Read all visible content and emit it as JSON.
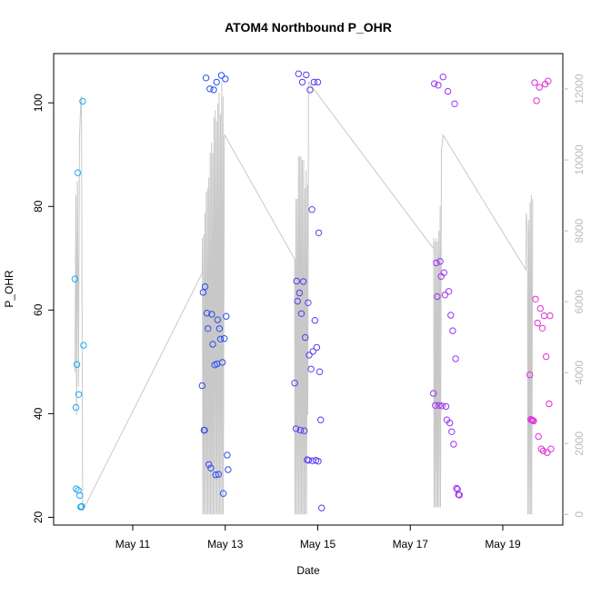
{
  "chart_data": {
    "type": "scatter",
    "title": "ATOM4 Northbound P_OHR",
    "xlabel": "Date",
    "ylabel": "P_OHR",
    "x_domain": [
      "2022-05-09",
      "2022-05-20"
    ],
    "x_ticks": [
      {
        "date": "2022-05-11",
        "label": "May 11"
      },
      {
        "date": "2022-05-13",
        "label": "May 13"
      },
      {
        "date": "2022-05-15",
        "label": "May 15"
      },
      {
        "date": "2022-05-17",
        "label": "May 17"
      },
      {
        "date": "2022-05-19",
        "label": "May 19"
      }
    ],
    "ylim": [
      18.5,
      109.5
    ],
    "y_ticks": [
      20,
      40,
      60,
      80,
      100
    ],
    "y2lim": [
      -300,
      13000
    ],
    "y2_ticks": [
      0,
      2000,
      4000,
      6000,
      8000,
      10000,
      12000
    ],
    "grid": false,
    "legend": "none",
    "point_colors": [
      "#1fa9f5",
      "#2b4ef0",
      "#5b3cf0",
      "#9c33f0",
      "#e030d8"
    ],
    "line_color": "#c8c8c8",
    "axis_color": "#000000",
    "secondary_axis_color": "#bbbbbb",
    "point_series": [
      {
        "day": "May 9",
        "points": [
          [
            "2022-05-09T18:00",
            66.0
          ],
          [
            "2022-05-09T18:30",
            41.2
          ],
          [
            "2022-05-09T19:00",
            49.5
          ],
          [
            "2022-05-09T19:30",
            86.5
          ],
          [
            "2022-05-09T19:45",
            25.2
          ],
          [
            "2022-05-09T20:00",
            43.7
          ],
          [
            "2022-05-09T20:30",
            24.2
          ],
          [
            "2022-05-09T21:00",
            22.0
          ],
          [
            "2022-05-09T21:30",
            22.1
          ],
          [
            "2022-05-09T22:00",
            100.3
          ],
          [
            "2022-05-09T22:30",
            53.2
          ],
          [
            "2022-05-09T18:40",
            25.5
          ],
          [
            "2022-05-09T21:15",
            22.0
          ]
        ]
      },
      {
        "day": "May 12-13",
        "points": [
          [
            "2022-05-12T12:00",
            45.4
          ],
          [
            "2022-05-12T12:30",
            63.4
          ],
          [
            "2022-05-12T13:00",
            36.8
          ],
          [
            "2022-05-12T13:30",
            64.5
          ],
          [
            "2022-05-12T14:00",
            104.8
          ],
          [
            "2022-05-12T14:30",
            59.4
          ],
          [
            "2022-05-12T15:00",
            56.4
          ],
          [
            "2022-05-12T15:30",
            30.2
          ],
          [
            "2022-05-12T16:00",
            102.7
          ],
          [
            "2022-05-12T16:30",
            29.5
          ],
          [
            "2022-05-12T17:00",
            59.2
          ],
          [
            "2022-05-12T17:30",
            53.4
          ],
          [
            "2022-05-12T18:00",
            102.5
          ],
          [
            "2022-05-12T18:30",
            49.4
          ],
          [
            "2022-05-12T19:00",
            28.2
          ],
          [
            "2022-05-12T19:30",
            104.0
          ],
          [
            "2022-05-12T20:00",
            58.1
          ],
          [
            "2022-05-12T20:30",
            28.3
          ],
          [
            "2022-05-12T21:00",
            56.4
          ],
          [
            "2022-05-12T21:30",
            54.4
          ],
          [
            "2022-05-12T22:00",
            105.3
          ],
          [
            "2022-05-12T22:30",
            49.9
          ],
          [
            "2022-05-12T23:00",
            24.6
          ],
          [
            "2022-05-12T23:30",
            54.5
          ],
          [
            "2022-05-13T00:00",
            104.6
          ],
          [
            "2022-05-13T00:30",
            58.8
          ],
          [
            "2022-05-13T01:00",
            32.0
          ],
          [
            "2022-05-13T01:30",
            29.2
          ],
          [
            "2022-05-12T13:15",
            36.8
          ],
          [
            "2022-05-12T19:45",
            49.6
          ]
        ]
      },
      {
        "day": "May 14-15",
        "points": [
          [
            "2022-05-14T12:00",
            45.9
          ],
          [
            "2022-05-14T12:40",
            37.1
          ],
          [
            "2022-05-14T13:00",
            65.6
          ],
          [
            "2022-05-14T13:30",
            61.7
          ],
          [
            "2022-05-14T14:00",
            105.6
          ],
          [
            "2022-05-14T14:30",
            63.3
          ],
          [
            "2022-05-14T15:00",
            36.8
          ],
          [
            "2022-05-14T15:30",
            59.3
          ],
          [
            "2022-05-14T16:00",
            104.0
          ],
          [
            "2022-05-14T16:30",
            65.5
          ],
          [
            "2022-05-14T17:00",
            36.7
          ],
          [
            "2022-05-14T17:30",
            54.7
          ],
          [
            "2022-05-14T18:00",
            105.4
          ],
          [
            "2022-05-14T18:30",
            31.1
          ],
          [
            "2022-05-14T19:00",
            61.4
          ],
          [
            "2022-05-14T19:30",
            51.3
          ],
          [
            "2022-05-14T20:00",
            102.5
          ],
          [
            "2022-05-14T20:30",
            48.6
          ],
          [
            "2022-05-14T21:00",
            79.4
          ],
          [
            "2022-05-14T21:30",
            52.0
          ],
          [
            "2022-05-14T22:00",
            104.0
          ],
          [
            "2022-05-14T22:30",
            58.0
          ],
          [
            "2022-05-14T23:00",
            31.0
          ],
          [
            "2022-05-14T23:30",
            52.8
          ],
          [
            "2022-05-15T00:00",
            104.0
          ],
          [
            "2022-05-15T00:30",
            74.9
          ],
          [
            "2022-05-15T01:00",
            48.1
          ],
          [
            "2022-05-15T01:30",
            38.8
          ],
          [
            "2022-05-15T02:00",
            21.8
          ],
          [
            "2022-05-14T19:15",
            31.0
          ],
          [
            "2022-05-14T21:15",
            30.9
          ],
          [
            "2022-05-15T00:15",
            30.8
          ]
        ]
      },
      {
        "day": "May 17",
        "points": [
          [
            "2022-05-17T12:00",
            43.9
          ],
          [
            "2022-05-17T12:30",
            103.7
          ],
          [
            "2022-05-17T13:00",
            41.6
          ],
          [
            "2022-05-17T13:30",
            69.1
          ],
          [
            "2022-05-17T14:00",
            62.6
          ],
          [
            "2022-05-17T14:30",
            103.4
          ],
          [
            "2022-05-17T15:00",
            41.6
          ],
          [
            "2022-05-17T15:30",
            69.4
          ],
          [
            "2022-05-17T16:00",
            66.5
          ],
          [
            "2022-05-17T16:30",
            41.5
          ],
          [
            "2022-05-17T17:00",
            105.0
          ],
          [
            "2022-05-17T17:30",
            67.2
          ],
          [
            "2022-05-17T18:00",
            62.9
          ],
          [
            "2022-05-17T18:30",
            41.4
          ],
          [
            "2022-05-17T19:00",
            38.8
          ],
          [
            "2022-05-17T19:30",
            102.2
          ],
          [
            "2022-05-17T20:00",
            63.6
          ],
          [
            "2022-05-17T20:30",
            38.2
          ],
          [
            "2022-05-17T21:00",
            59.0
          ],
          [
            "2022-05-17T21:30",
            36.5
          ],
          [
            "2022-05-17T22:00",
            56.0
          ],
          [
            "2022-05-17T22:30",
            34.1
          ],
          [
            "2022-05-17T23:00",
            99.8
          ],
          [
            "2022-05-17T23:30",
            50.6
          ],
          [
            "2022-05-18T00:00",
            25.6
          ],
          [
            "2022-05-18T00:30",
            25.4
          ],
          [
            "2022-05-18T01:00",
            24.4
          ],
          [
            "2022-05-18T01:30",
            24.3
          ]
        ]
      },
      {
        "day": "May 19",
        "points": [
          [
            "2022-05-19T14:00",
            47.5
          ],
          [
            "2022-05-19T14:30",
            38.9
          ],
          [
            "2022-05-19T15:00",
            38.8
          ],
          [
            "2022-05-19T15:30",
            38.7
          ],
          [
            "2022-05-19T16:00",
            38.6
          ],
          [
            "2022-05-19T16:30",
            103.9
          ],
          [
            "2022-05-19T17:00",
            62.1
          ],
          [
            "2022-05-19T17:30",
            100.4
          ],
          [
            "2022-05-19T18:00",
            57.5
          ],
          [
            "2022-05-19T18:30",
            35.6
          ],
          [
            "2022-05-19T19:00",
            103.0
          ],
          [
            "2022-05-19T19:30",
            60.3
          ],
          [
            "2022-05-19T20:00",
            33.2
          ],
          [
            "2022-05-19T20:30",
            56.5
          ],
          [
            "2022-05-19T21:00",
            32.8
          ],
          [
            "2022-05-19T21:30",
            58.9
          ],
          [
            "2022-05-19T22:00",
            103.6
          ],
          [
            "2022-05-19T22:30",
            51.0
          ],
          [
            "2022-05-19T23:00",
            32.5
          ],
          [
            "2022-05-19T23:30",
            104.2
          ],
          [
            "2022-05-20T00:00",
            41.9
          ],
          [
            "2022-05-20T00:30",
            58.9
          ],
          [
            "2022-05-20T01:00",
            33.2
          ]
        ]
      }
    ],
    "line_series": [
      [
        "2022-05-09T18:00",
        4000
      ],
      [
        "2022-05-09T18:30",
        9000
      ],
      [
        "2022-05-09T18:50",
        2800
      ],
      [
        "2022-05-09T19:20",
        9400
      ],
      [
        "2022-05-09T19:50",
        3600
      ],
      [
        "2022-05-09T20:20",
        10600
      ],
      [
        "2022-05-09T20:50",
        11300
      ],
      [
        "2022-05-09T21:10",
        11700
      ],
      [
        "2022-05-09T21:25",
        11800
      ],
      [
        "2022-05-09T22:00",
        100
      ],
      [
        "2022-05-12T12:00",
        6800
      ],
      [
        "2022-05-12T12:10",
        7800
      ],
      [
        "2022-05-12T12:20",
        0
      ],
      [
        "2022-05-12T12:50",
        7900
      ],
      [
        "2022-05-12T13:00",
        0
      ],
      [
        "2022-05-12T13:30",
        8500
      ],
      [
        "2022-05-12T13:40",
        0
      ],
      [
        "2022-05-12T14:10",
        9100
      ],
      [
        "2022-05-12T14:20",
        0
      ],
      [
        "2022-05-12T14:50",
        9200
      ],
      [
        "2022-05-12T15:00",
        0
      ],
      [
        "2022-05-12T15:30",
        9500
      ],
      [
        "2022-05-12T15:40",
        0
      ],
      [
        "2022-05-12T16:10",
        10200
      ],
      [
        "2022-05-12T16:20",
        0
      ],
      [
        "2022-05-12T16:50",
        10500
      ],
      [
        "2022-05-12T17:00",
        0
      ],
      [
        "2022-05-12T17:30",
        10200
      ],
      [
        "2022-05-12T17:40",
        0
      ],
      [
        "2022-05-12T18:10",
        11200
      ],
      [
        "2022-05-12T18:20",
        0
      ],
      [
        "2022-05-12T18:50",
        11400
      ],
      [
        "2022-05-12T19:00",
        0
      ],
      [
        "2022-05-12T19:30",
        11100
      ],
      [
        "2022-05-12T19:40",
        0
      ],
      [
        "2022-05-12T20:10",
        11600
      ],
      [
        "2022-05-12T20:20",
        0
      ],
      [
        "2022-05-12T20:50",
        11900
      ],
      [
        "2022-05-12T21:00",
        0
      ],
      [
        "2022-05-12T21:30",
        11300
      ],
      [
        "2022-05-12T21:40",
        0
      ],
      [
        "2022-05-12T22:10",
        12200
      ],
      [
        "2022-05-12T22:20",
        0
      ],
      [
        "2022-05-12T22:50",
        11800
      ],
      [
        "2022-05-12T23:00",
        0
      ],
      [
        "2022-05-12T23:30",
        10700
      ],
      [
        "2022-05-12T23:45",
        10700
      ],
      [
        "2022-05-14T12:00",
        7200
      ],
      [
        "2022-05-14T12:10",
        0
      ],
      [
        "2022-05-14T12:40",
        8900
      ],
      [
        "2022-05-14T12:50",
        0
      ],
      [
        "2022-05-14T13:20",
        8900
      ],
      [
        "2022-05-14T13:30",
        0
      ],
      [
        "2022-05-14T14:00",
        10100
      ],
      [
        "2022-05-14T14:10",
        0
      ],
      [
        "2022-05-14T14:40",
        10100
      ],
      [
        "2022-05-14T14:50",
        0
      ],
      [
        "2022-05-14T15:20",
        10100
      ],
      [
        "2022-05-14T15:30",
        0
      ],
      [
        "2022-05-14T16:00",
        10000
      ],
      [
        "2022-05-14T16:10",
        0
      ],
      [
        "2022-05-14T16:40",
        10000
      ],
      [
        "2022-05-14T16:50",
        0
      ],
      [
        "2022-05-14T17:20",
        9200
      ],
      [
        "2022-05-14T17:30",
        0
      ],
      [
        "2022-05-14T18:00",
        9700
      ],
      [
        "2022-05-14T18:10",
        0
      ],
      [
        "2022-05-14T18:40",
        9300
      ],
      [
        "2022-05-14T18:50",
        2800
      ],
      [
        "2022-05-14T19:10",
        12200
      ],
      [
        "2022-05-17T12:00",
        7500
      ],
      [
        "2022-05-17T12:10",
        7800
      ],
      [
        "2022-05-17T12:20",
        200
      ],
      [
        "2022-05-17T12:50",
        7700
      ],
      [
        "2022-05-17T13:00",
        200
      ],
      [
        "2022-05-17T13:30",
        7800
      ],
      [
        "2022-05-17T13:40",
        200
      ],
      [
        "2022-05-17T14:10",
        7700
      ],
      [
        "2022-05-17T14:20",
        200
      ],
      [
        "2022-05-17T14:50",
        8000
      ],
      [
        "2022-05-17T15:00",
        200
      ],
      [
        "2022-05-17T15:30",
        8700
      ],
      [
        "2022-05-17T15:40",
        200
      ],
      [
        "2022-05-17T16:10",
        10300
      ],
      [
        "2022-05-17T16:30",
        10400
      ],
      [
        "2022-05-17T17:00",
        10700
      ],
      [
        "2022-05-19T12:00",
        6900
      ],
      [
        "2022-05-19T12:10",
        8500
      ],
      [
        "2022-05-19T12:30",
        8200
      ],
      [
        "2022-05-19T12:50",
        7900
      ],
      [
        "2022-05-19T13:00",
        0
      ],
      [
        "2022-05-19T13:30",
        8300
      ],
      [
        "2022-05-19T13:40",
        0
      ],
      [
        "2022-05-19T14:10",
        8800
      ],
      [
        "2022-05-19T14:20",
        0
      ],
      [
        "2022-05-19T14:50",
        9000
      ],
      [
        "2022-05-19T15:00",
        0
      ],
      [
        "2022-05-19T15:30",
        8900
      ]
    ]
  }
}
